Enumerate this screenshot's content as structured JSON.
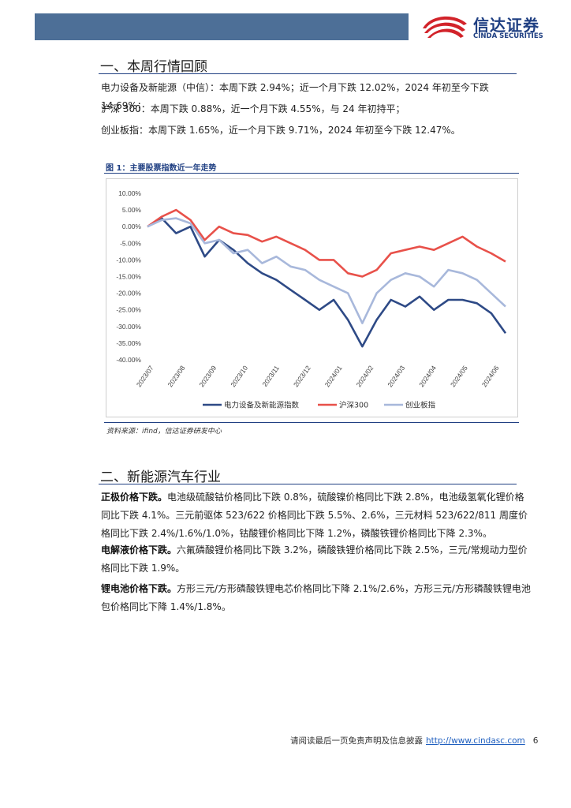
{
  "header": {
    "logo_cn": "信达证券",
    "logo_en": "CINDA SECURITIES"
  },
  "section1": {
    "title": "一、本周行情回顾",
    "lines": [
      "电力设备及新能源（中信）：本周下跌 2.94%；近一个月下跌 12.02%，2024 年初至今下跌 14.69%；",
      "沪深 300：本周下跌 0.88%，近一个月下跌 4.55%，与 24 年初持平；",
      "创业板指：本周下跌 1.65%，近一个月下跌 9.71%，2024 年初至今下跌 12.47%。"
    ]
  },
  "figure": {
    "title": "图 1：主要股票指数近一年走势",
    "source": "资料来源：ifind，信达证券研发中心"
  },
  "chart_data": {
    "type": "line",
    "title": "",
    "xlabel": "",
    "ylabel": "",
    "ylim": [
      -40,
      10
    ],
    "yticks": [
      "10.00%",
      "5.00%",
      "0.00%",
      "-5.00%",
      "-10.00%",
      "-15.00%",
      "-20.00%",
      "-25.00%",
      "-30.00%",
      "-35.00%",
      "-40.00%"
    ],
    "xticks": [
      "2023/07",
      "2023/08",
      "2023/09",
      "2023/10",
      "2023/11",
      "2023/12",
      "2024/01",
      "2024/02",
      "2024/03",
      "2024/04",
      "2024/05",
      "2024/06"
    ],
    "grid": false,
    "legend_position": "bottom",
    "x": [
      "2023/07",
      "2023/07",
      "2023/08",
      "2023/08",
      "2023/08",
      "2023/09",
      "2023/09",
      "2023/10",
      "2023/10",
      "2023/11",
      "2023/11",
      "2023/12",
      "2023/12",
      "2024/01",
      "2024/01",
      "2024/02",
      "2024/02",
      "2024/03",
      "2024/03",
      "2024/04",
      "2024/04",
      "2024/05",
      "2024/05",
      "2024/06",
      "2024/06",
      "2024/07"
    ],
    "series": [
      {
        "name": "电力设备及新能源指数",
        "color": "#2e4a86",
        "values": [
          0,
          2.5,
          -2,
          0,
          -9,
          -4,
          -7,
          -11,
          -14,
          -16,
          -19,
          -22,
          -25,
          -22,
          -28,
          -36,
          -28,
          -22,
          -24,
          -21,
          -25,
          -22,
          -22,
          -23,
          -26,
          -32
        ]
      },
      {
        "name": "沪深300",
        "color": "#e8514a",
        "values": [
          0,
          3,
          5,
          2,
          -4,
          0,
          -2,
          -2.5,
          -4.5,
          -3,
          -5,
          -7,
          -10,
          -10,
          -14,
          -15,
          -13,
          -8,
          -7,
          -6,
          -7,
          -5,
          -3,
          -6,
          -8,
          -10.5
        ]
      },
      {
        "name": "创业板指",
        "color": "#a8b8db",
        "values": [
          0,
          2,
          2.5,
          1,
          -5,
          -4,
          -8,
          -7,
          -11,
          -9,
          -12,
          -13,
          -16,
          -18,
          -20,
          -29,
          -20,
          -16,
          -14,
          -15,
          -18,
          -13,
          -14,
          -16,
          -20,
          -24
        ]
      }
    ]
  },
  "section2": {
    "title": "二、新能源汽车行业",
    "p1_lead": "正极价格下跌。",
    "p1_text": "电池级硫酸钴价格同比下跌 0.8%，硫酸镍价格同比下跌 2.8%，电池级氢氧化锂价格同比下跌 4.1%。三元前驱体 523/622 价格同比下跌 5.5%、2.6%，三元材料 523/622/811 周度价格同比下跌 2.4%/1.6%/1.0%，钴酸锂价格同比下降 1.2%，磷酸铁锂价格同比下降 2.3%。",
    "p2_lead": "电解液价格下跌。",
    "p2_text": "六氟磷酸锂价格同比下跌 3.2%，磷酸铁锂价格同比下跌 2.5%，三元/常规动力型价格同比下跌 1.9%。",
    "p3_lead": "锂电池价格下跌。",
    "p3_text": "方形三元/方形磷酸铁锂电芯价格同比下降 2.1%/2.6%，方形三元/方形磷酸铁锂电池包价格同比下降 1.4%/1.8%。"
  },
  "footer": {
    "disclaimer": "请阅读最后一页免责声明及信息披露",
    "url": "http://www.cindasc.com",
    "page": "6"
  }
}
